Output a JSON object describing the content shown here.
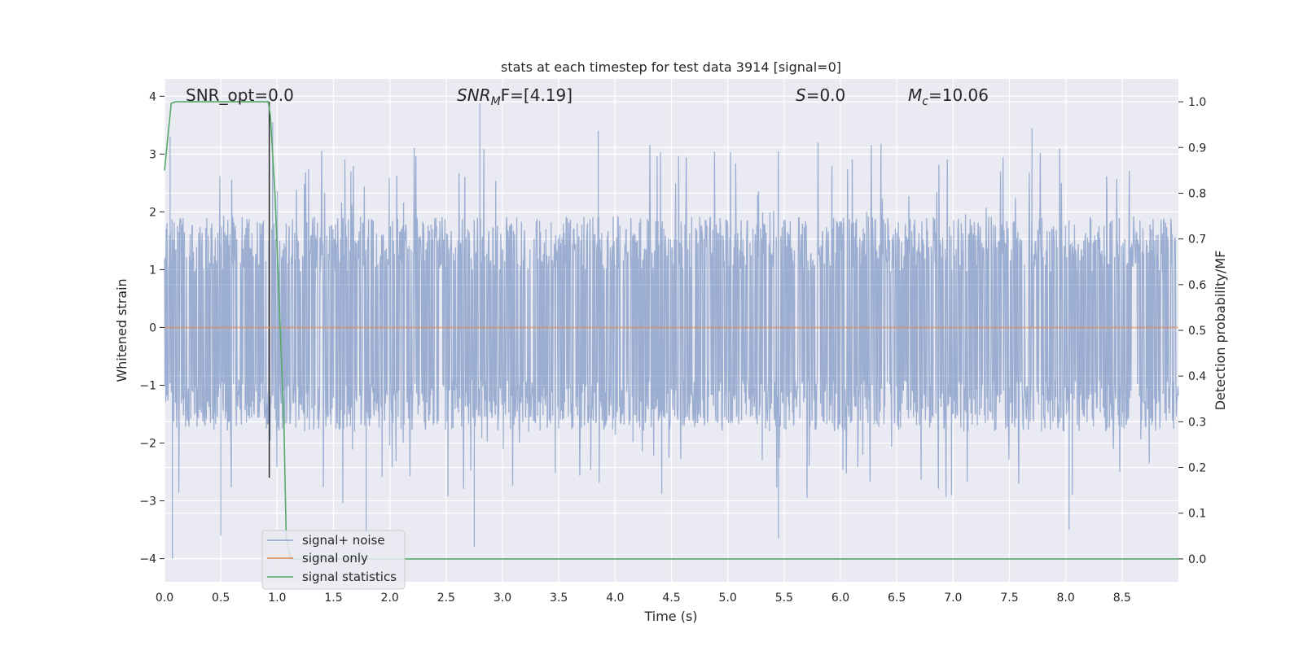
{
  "chart_data": {
    "type": "line",
    "title": "stats at each timestep for test data 3914 [signal=0]",
    "xlabel": "Time (s)",
    "ylabel_left": "Whitened strain",
    "ylabel_right": "Detection probability/MF",
    "xlim": [
      0.0,
      9.0
    ],
    "ylim_left": [
      -4.4,
      4.3
    ],
    "ylim_right": [
      -0.05,
      1.05
    ],
    "x_ticks": [
      "0.0",
      "0.5",
      "1.0",
      "1.5",
      "2.0",
      "2.5",
      "3.0",
      "3.5",
      "4.0",
      "4.5",
      "5.0",
      "5.5",
      "6.0",
      "6.5",
      "7.0",
      "7.5",
      "8.0",
      "8.5"
    ],
    "y_ticks_left": [
      "4",
      "3",
      "2",
      "1",
      "0",
      "−1",
      "−2",
      "−3",
      "−4"
    ],
    "y_ticks_right": [
      "1.0",
      "0.9",
      "0.8",
      "0.7",
      "0.6",
      "0.5",
      "0.4",
      "0.3",
      "0.2",
      "0.1",
      "0.0"
    ],
    "grid": true,
    "annotations": {
      "snr_opt": "SNR_opt=0.0",
      "snr_mf_base": "SNR",
      "snr_mf_sub": "M",
      "snr_mf_rest": "F=[4.19]",
      "s_italic": "S",
      "s_rest": "=0.0",
      "mc_italic": "M",
      "mc_sub": "c",
      "mc_rest": "=10.06"
    },
    "legend": {
      "placement": "lower-left",
      "entries": [
        "signal+ noise",
        "signal only",
        "signal statistics"
      ]
    },
    "series": [
      {
        "name": "signal+ noise",
        "axis": "left",
        "style": "noise",
        "color": "#4c72b0",
        "envelope": {
          "typical_max": 1.6,
          "typical_min": -1.5,
          "peak_max": 3.9,
          "peak_min": -4.0
        },
        "peaks": [
          {
            "x": 0.07,
            "y": -4.0
          },
          {
            "x": 0.5,
            "y": -3.6
          },
          {
            "x": 1.79,
            "y": -3.55
          },
          {
            "x": 2.8,
            "y": 3.88
          },
          {
            "x": 2.75,
            "y": -3.8
          },
          {
            "x": 3.85,
            "y": 3.4
          },
          {
            "x": 5.45,
            "y": -3.65
          },
          {
            "x": 7.7,
            "y": 3.45
          },
          {
            "x": 8.03,
            "y": -3.5
          },
          {
            "x": 0.96,
            "y": 3.55
          },
          {
            "x": 0.05,
            "y": 3.3
          }
        ]
      },
      {
        "name": "signal only",
        "axis": "left",
        "color": "#dd8452",
        "x": [
          0.0,
          9.0
        ],
        "y": [
          0.0,
          0.0
        ]
      },
      {
        "name": "signal statistics",
        "axis": "right",
        "color": "#55a868",
        "x": [
          0.0,
          0.06,
          0.1,
          0.15,
          0.92,
          0.94,
          0.98,
          1.02,
          1.06,
          1.08,
          1.12,
          1.2,
          2.0,
          9.0
        ],
        "y": [
          0.85,
          0.997,
          1.0,
          1.0,
          1.0,
          0.97,
          0.8,
          0.55,
          0.3,
          0.05,
          0.0,
          0.0,
          0.0,
          0.0
        ]
      }
    ],
    "vertical_marker": {
      "x": 0.93,
      "color": "#262626"
    }
  }
}
